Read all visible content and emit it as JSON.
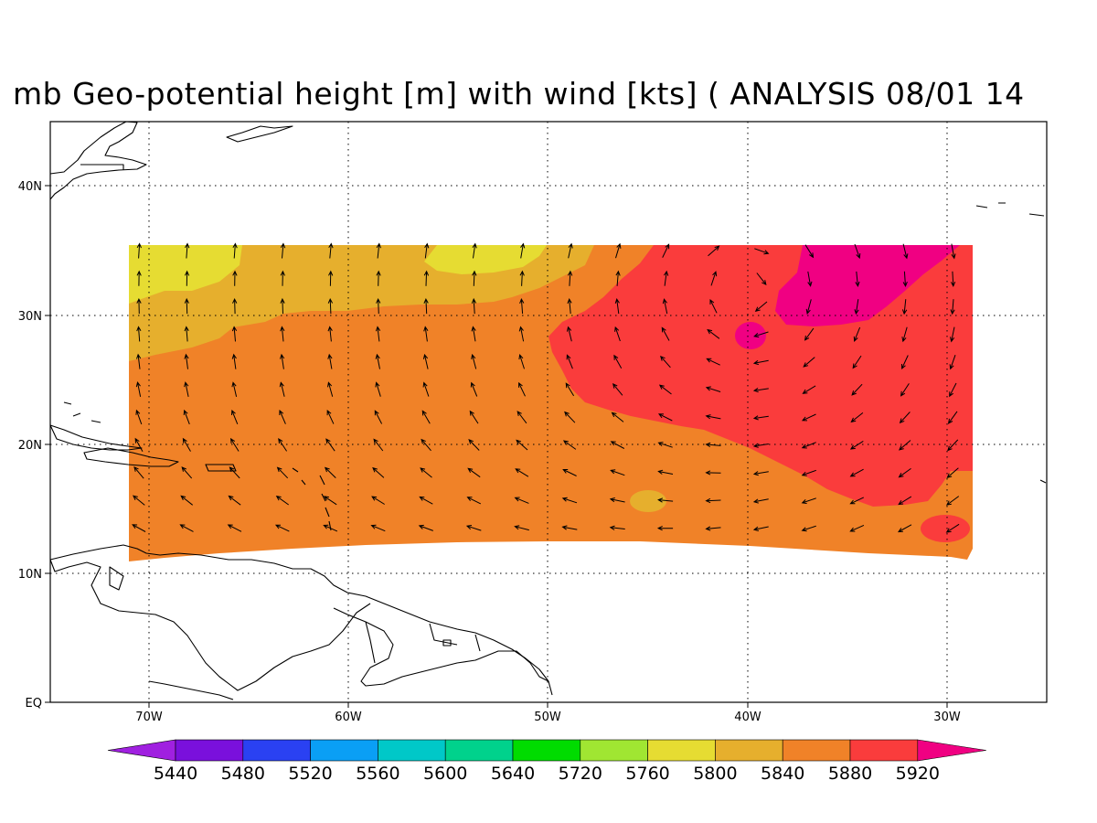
{
  "title": "mb Geo-potential height [m] with wind [kts] ( ANALYSIS 08/01 14",
  "lat_labels": [
    "40N",
    "30N",
    "20N",
    "10N",
    "EQ"
  ],
  "lon_labels": [
    "70W",
    "60W",
    "50W",
    "40W",
    "30W"
  ],
  "colorbar": {
    "levels": [
      "5440",
      "5480",
      "5520",
      "5560",
      "5600",
      "5640",
      "5720",
      "5760",
      "5800",
      "5840",
      "5880",
      "5920"
    ],
    "colors": [
      "#a020e0",
      "#7a10dc",
      "#2a41f2",
      "#0a9ff5",
      "#00c8c8",
      "#00d28c",
      "#00dc00",
      "#a0e632",
      "#e6dc32",
      "#e6af2d",
      "#f08228",
      "#fa3c3c",
      "#f00082"
    ]
  },
  "fill_colors": {
    "c5800": "#e6dc32",
    "c5840": "#e6af2d",
    "c5880": "#f08228",
    "c5920": "#fa3c3c",
    "c5960": "#f00082"
  },
  "wind_field": {
    "lon_range": [
      -71,
      -29
    ],
    "lat_range": [
      12,
      35
    ],
    "direction_note": "anticyclonic circulation centred near 32N 40W"
  }
}
